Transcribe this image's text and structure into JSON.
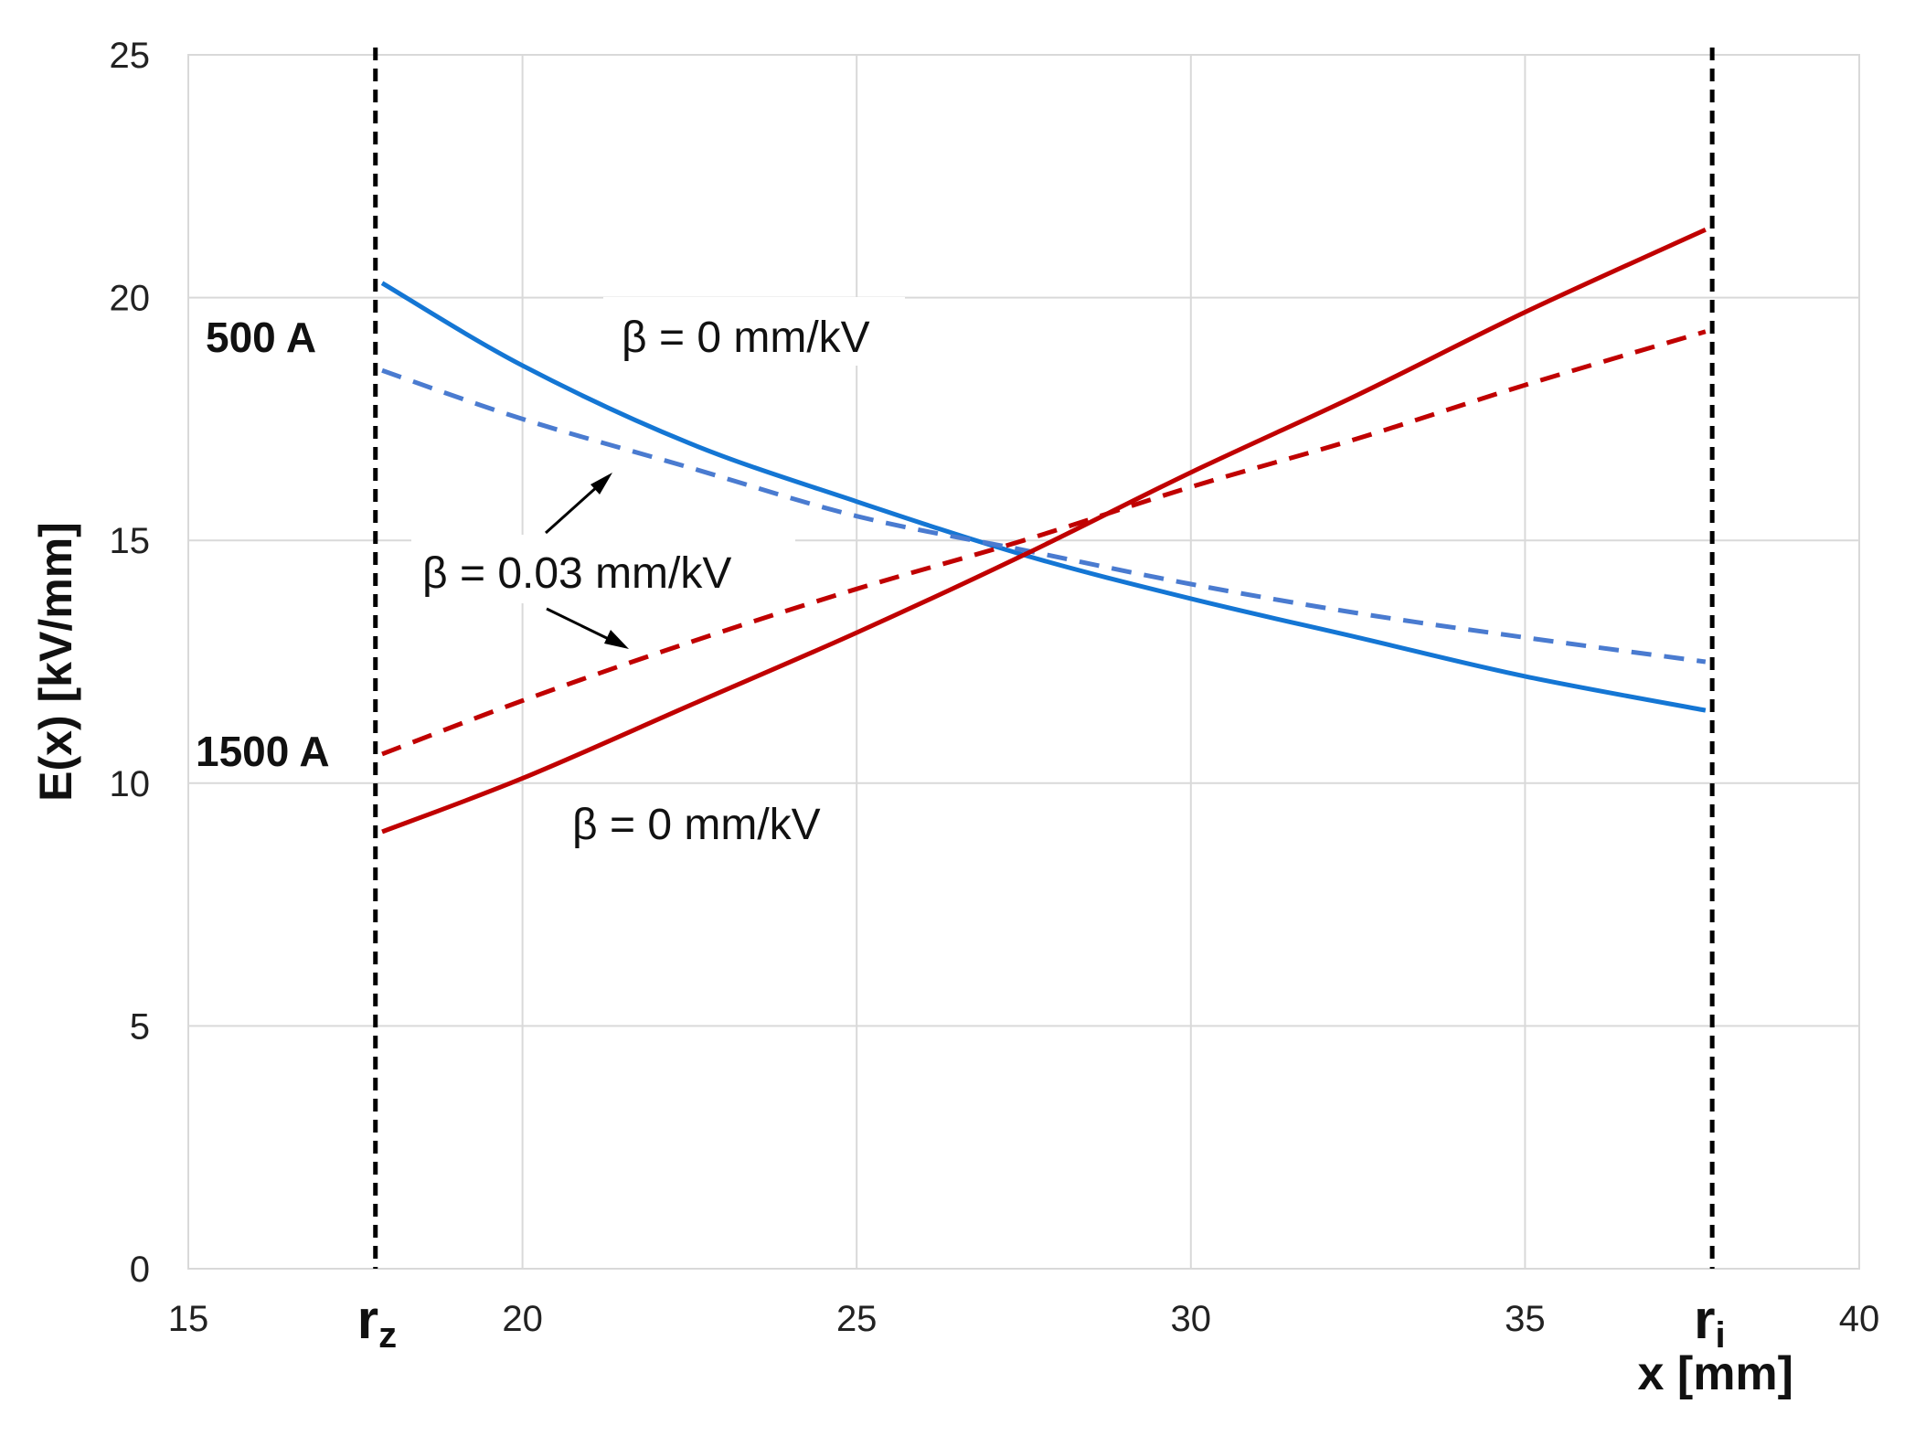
{
  "chart_data": {
    "type": "line",
    "title": "",
    "xlabel": "x [mm]",
    "ylabel": "E(x) [kV/mm]",
    "xlim": [
      15,
      40
    ],
    "ylim": [
      0,
      25
    ],
    "xticks": [
      15,
      20,
      25,
      30,
      35,
      40
    ],
    "yticks": [
      0,
      5,
      10,
      15,
      20,
      25
    ],
    "grid": true,
    "legend": "none",
    "x": [
      17.9,
      20,
      22.5,
      25,
      27.5,
      30,
      32.5,
      35,
      37.7
    ],
    "series": [
      {
        "name": "500 A, β = 0 mm/kV",
        "style": "solid",
        "color": "#1476d4",
        "values": [
          20.3,
          18.6,
          17.0,
          15.8,
          14.7,
          13.8,
          13.0,
          12.2,
          11.5
        ]
      },
      {
        "name": "500 A, β = 0.03 mm/kV",
        "style": "dashed",
        "color": "#4a7bd0",
        "values": [
          18.5,
          17.5,
          16.5,
          15.5,
          14.8,
          14.1,
          13.5,
          13.0,
          12.5
        ]
      },
      {
        "name": "1500 A, β = 0 mm/kV",
        "style": "solid",
        "color": "#c00000",
        "values": [
          9.0,
          10.1,
          11.6,
          13.1,
          14.7,
          16.4,
          18.0,
          19.7,
          21.4
        ]
      },
      {
        "name": "1500 A, β = 0.03 mm/kV",
        "style": "dashed",
        "color": "#c00000",
        "values": [
          10.6,
          11.7,
          12.9,
          14.0,
          15.0,
          16.1,
          17.1,
          18.2,
          19.3
        ]
      }
    ],
    "vlines": [
      {
        "x": 17.8,
        "label_main": "r",
        "label_sub": "z"
      },
      {
        "x": 37.8,
        "label_main": "r",
        "label_sub": "i"
      }
    ],
    "annotations": {
      "label_500": "500 A",
      "label_1500": "1500 A",
      "beta0_top": "β = 0 mm/kV",
      "beta003": "β = 0.03 mm/kV",
      "beta0_bottom": "β = 0 mm/kV"
    }
  }
}
